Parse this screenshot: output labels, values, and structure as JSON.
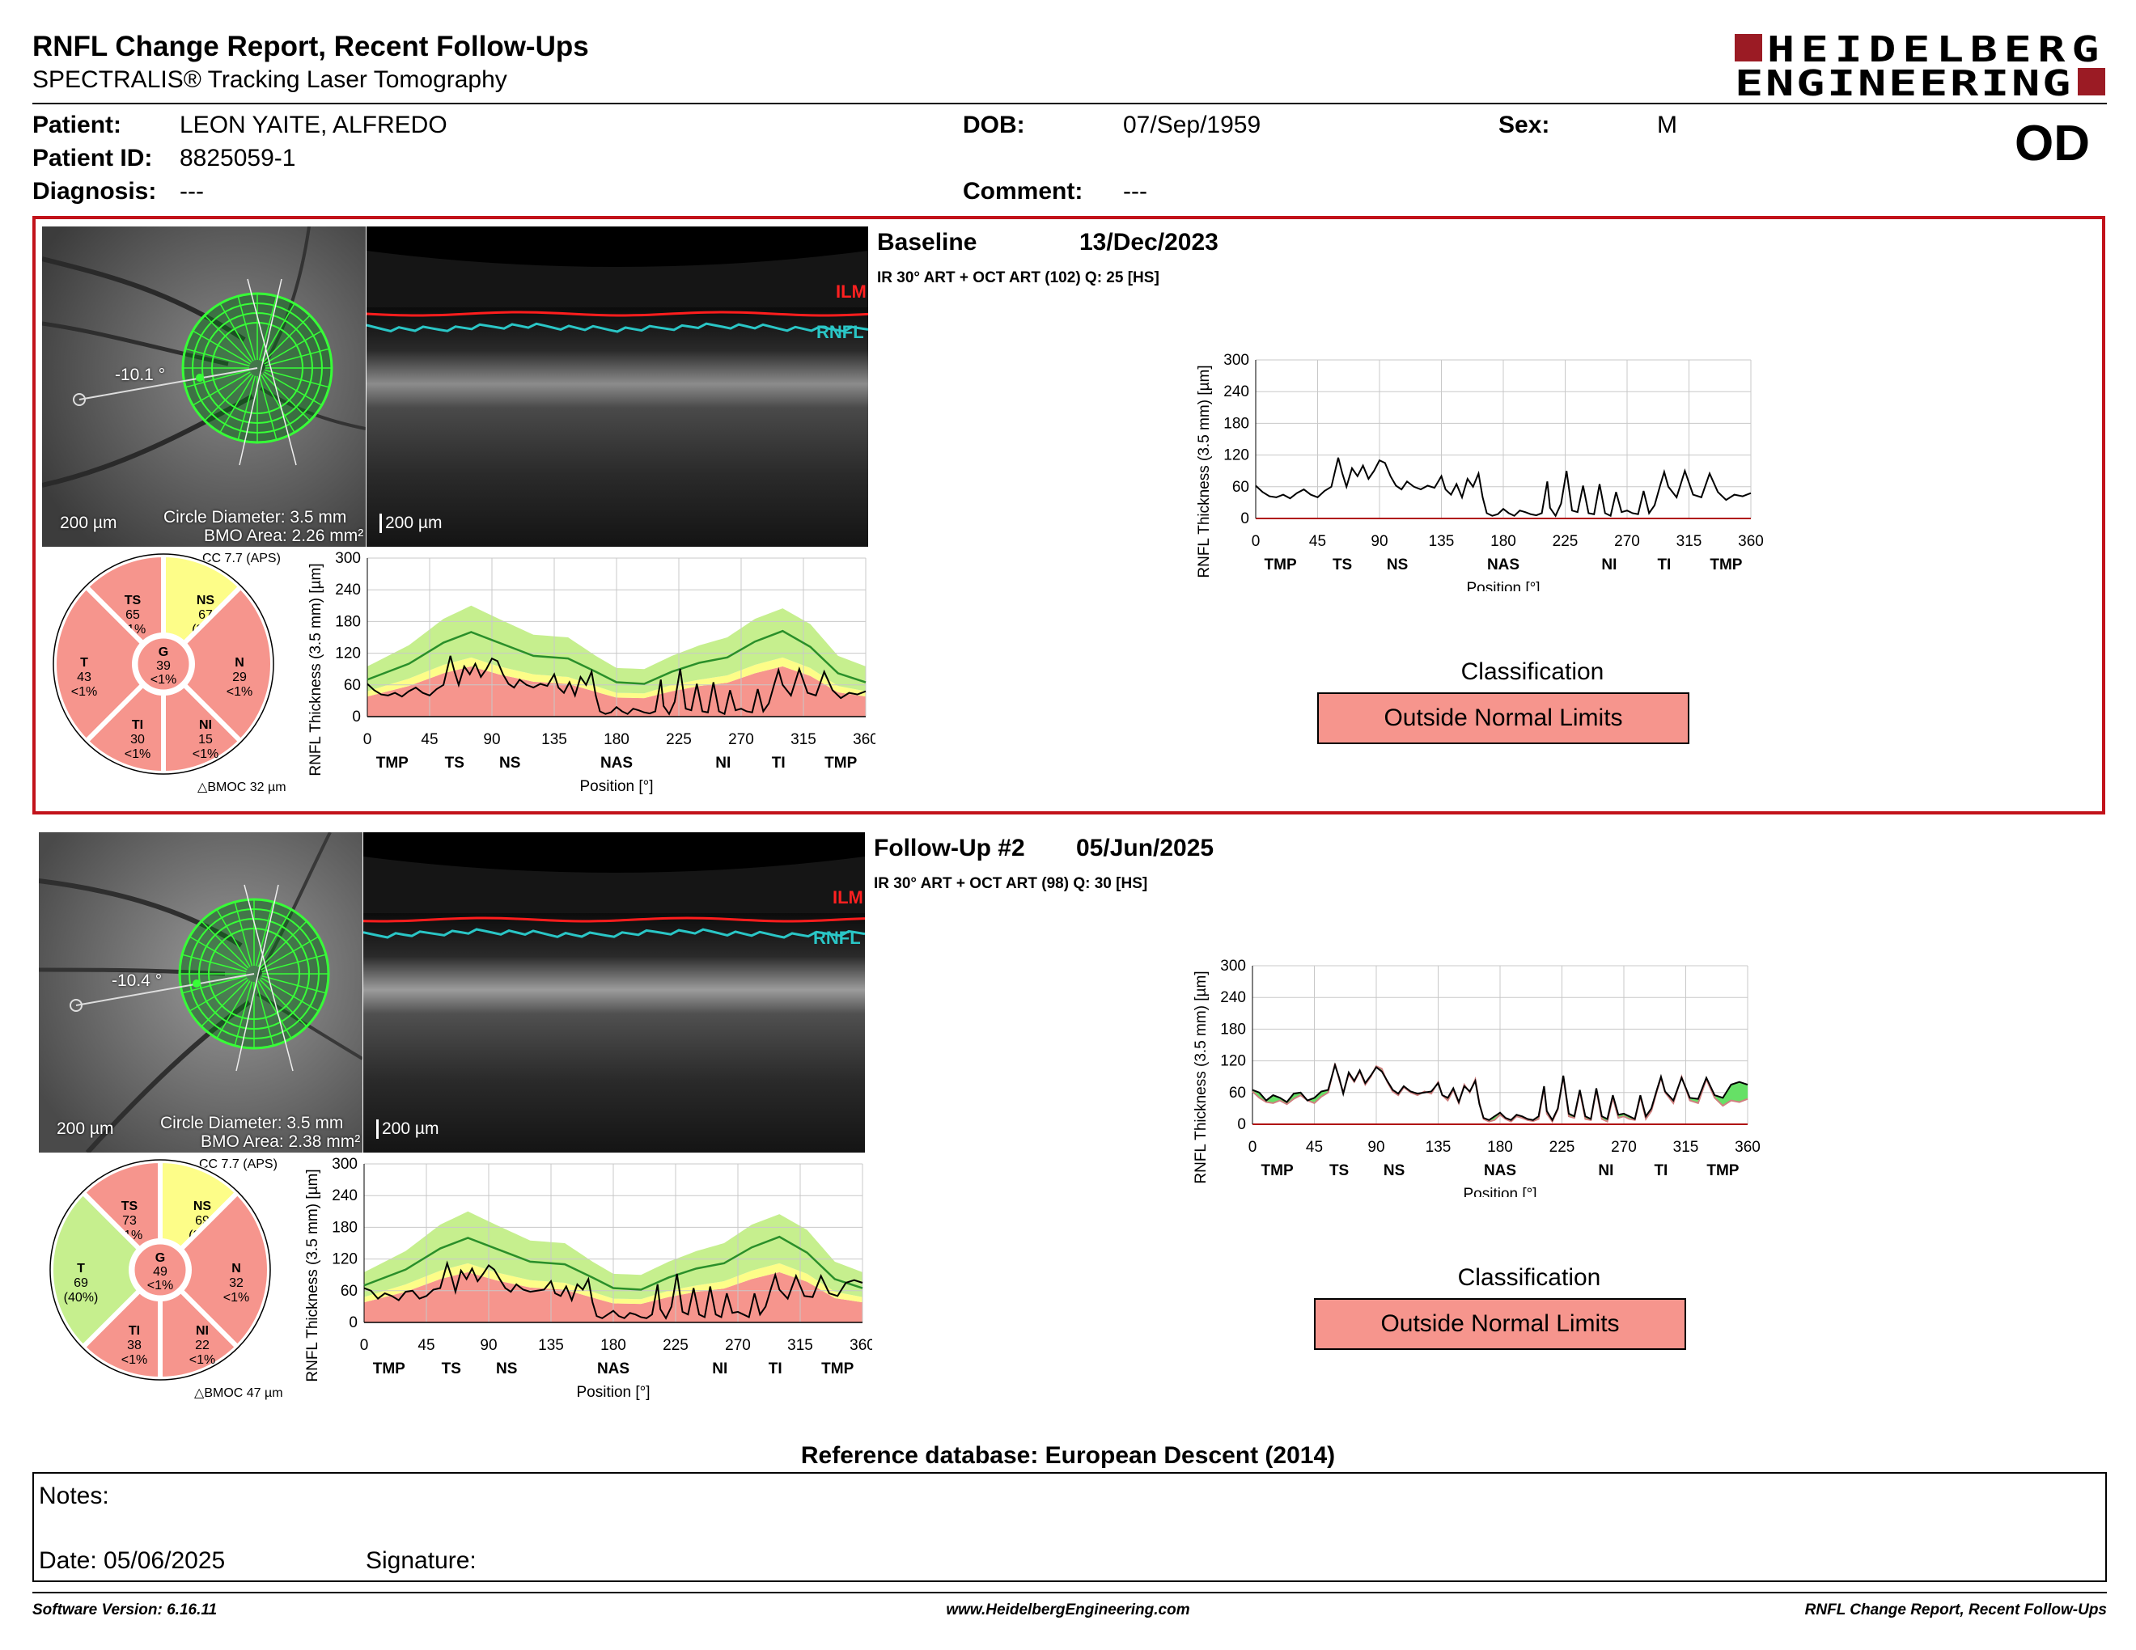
{
  "header": {
    "title": "RNFL Change Report, Recent Follow-Ups",
    "subtitle": "SPECTRALIS® Tracking Laser Tomography",
    "logo_line1": "HEIDELBERG",
    "logo_line2": "ENGINEERING",
    "eye": "OD"
  },
  "patient": {
    "patient_label": "Patient:",
    "patient_value": "LEON YAITE, ALFREDO",
    "id_label": "Patient ID:",
    "id_value": "8825059-1",
    "diagnosis_label": "Diagnosis:",
    "diagnosis_value": "---",
    "dob_label": "DOB:",
    "dob_value": "07/Sep/1959",
    "comment_label": "Comment:",
    "comment_value": "---",
    "sex_label": "Sex:",
    "sex_value": "M"
  },
  "colors": {
    "accent": "#c2121a",
    "outside": "#f6958d",
    "borderline": "#fdfd88",
    "within": "#c6ef8e",
    "ilm": "#ff0000",
    "rnfl": "#28c4c4"
  },
  "exams": [
    {
      "heading": "Baseline",
      "date": "13/Dec/2023",
      "acquisition": "IR 30° ART + OCT ART (102) Q: 25 [HS]",
      "angle": "-10.1 °",
      "scale_fundus": "200 µm",
      "scale_bscan": "200 µm",
      "circle_diameter": "Circle Diameter: 3.5 mm",
      "bmo_area": "BMO Area: 2.26 mm²",
      "ilm_label": "ILM",
      "rnfl_label": "RNFL",
      "cc": "CC 7.7 (APS)",
      "bmoc": "BMOC 32 µm",
      "sectors": {
        "TS": {
          "name": "TS",
          "value": "65",
          "pct": "<1%",
          "cls": "outside"
        },
        "NS": {
          "name": "NS",
          "value": "67",
          "pct": "(2%)",
          "cls": "borderline"
        },
        "N": {
          "name": "N",
          "value": "29",
          "pct": "<1%",
          "cls": "outside"
        },
        "NI": {
          "name": "NI",
          "value": "15",
          "pct": "<1%",
          "cls": "outside"
        },
        "TI": {
          "name": "TI",
          "value": "30",
          "pct": "<1%",
          "cls": "outside"
        },
        "T": {
          "name": "T",
          "value": "43",
          "pct": "<1%",
          "cls": "outside"
        },
        "G": {
          "name": "G",
          "value": "39",
          "pct": "<1%",
          "cls": "outside"
        }
      },
      "classification_label": "Classification",
      "classification": "Outside Normal Limits"
    },
    {
      "heading": "Follow-Up #2",
      "date": "05/Jun/2025",
      "acquisition": "IR 30° ART + OCT ART (98) Q: 30 [HS]",
      "angle": "-10.4 °",
      "scale_fundus": "200 µm",
      "scale_bscan": "200 µm",
      "circle_diameter": "Circle Diameter: 3.5 mm",
      "bmo_area": "BMO Area: 2.38 mm²",
      "ilm_label": "ILM",
      "rnfl_label": "RNFL",
      "cc": "CC 7.7 (APS)",
      "bmoc": "BMOC 47 µm",
      "sectors": {
        "TS": {
          "name": "TS",
          "value": "73",
          "pct": "<1%",
          "cls": "outside"
        },
        "NS": {
          "name": "NS",
          "value": "69",
          "pct": "(2%)",
          "cls": "borderline"
        },
        "N": {
          "name": "N",
          "value": "32",
          "pct": "<1%",
          "cls": "outside"
        },
        "NI": {
          "name": "NI",
          "value": "22",
          "pct": "<1%",
          "cls": "outside"
        },
        "TI": {
          "name": "TI",
          "value": "38",
          "pct": "<1%",
          "cls": "outside"
        },
        "T": {
          "name": "T",
          "value": "69",
          "pct": "(40%)",
          "cls": "within"
        },
        "G": {
          "name": "G",
          "value": "49",
          "pct": "<1%",
          "cls": "outside"
        }
      },
      "classification_label": "Classification",
      "classification": "Outside Normal Limits"
    }
  ],
  "chart_data": [
    {
      "type": "line",
      "ylabel": "RNFL Thickness (3.5 mm) [µm]",
      "xlabel": "Position [°]",
      "ylim": [
        0,
        300
      ],
      "xlim": [
        0,
        360
      ],
      "yticks": [
        0,
        60,
        120,
        180,
        240,
        300
      ],
      "xticks": [
        0,
        45,
        90,
        135,
        180,
        225,
        270,
        315,
        360
      ],
      "sector_labels": [
        {
          "label": "TMP",
          "x": 18
        },
        {
          "label": "TS",
          "x": 63
        },
        {
          "label": "NS",
          "x": 103
        },
        {
          "label": "NAS",
          "x": 180
        },
        {
          "label": "NI",
          "x": 257
        },
        {
          "label": "TI",
          "x": 297
        },
        {
          "label": "TMP",
          "x": 342
        }
      ],
      "normative_mean": [
        [
          0,
          70
        ],
        [
          30,
          100
        ],
        [
          55,
          140
        ],
        [
          75,
          160
        ],
        [
          95,
          140
        ],
        [
          120,
          115
        ],
        [
          145,
          110
        ],
        [
          165,
          85
        ],
        [
          180,
          65
        ],
        [
          200,
          62
        ],
        [
          220,
          85
        ],
        [
          240,
          102
        ],
        [
          260,
          112
        ],
        [
          280,
          142
        ],
        [
          300,
          162
        ],
        [
          320,
          132
        ],
        [
          340,
          82
        ],
        [
          360,
          65
        ]
      ],
      "normative_upper": [
        [
          0,
          95
        ],
        [
          30,
          135
        ],
        [
          55,
          185
        ],
        [
          75,
          210
        ],
        [
          95,
          185
        ],
        [
          120,
          155
        ],
        [
          145,
          150
        ],
        [
          165,
          115
        ],
        [
          180,
          92
        ],
        [
          200,
          90
        ],
        [
          220,
          115
        ],
        [
          240,
          135
        ],
        [
          260,
          150
        ],
        [
          280,
          185
        ],
        [
          300,
          205
        ],
        [
          320,
          175
        ],
        [
          340,
          115
        ],
        [
          360,
          95
        ]
      ],
      "normative_p5": [
        [
          0,
          48
        ],
        [
          30,
          72
        ],
        [
          55,
          98
        ],
        [
          75,
          112
        ],
        [
          95,
          95
        ],
        [
          120,
          80
        ],
        [
          145,
          75
        ],
        [
          165,
          58
        ],
        [
          180,
          45
        ],
        [
          200,
          44
        ],
        [
          220,
          60
        ],
        [
          240,
          70
        ],
        [
          260,
          78
        ],
        [
          280,
          98
        ],
        [
          300,
          112
        ],
        [
          320,
          92
        ],
        [
          340,
          58
        ],
        [
          360,
          48
        ]
      ],
      "normative_p1": [
        [
          0,
          38
        ],
        [
          30,
          58
        ],
        [
          55,
          82
        ],
        [
          75,
          95
        ],
        [
          95,
          80
        ],
        [
          120,
          66
        ],
        [
          145,
          62
        ],
        [
          165,
          47
        ],
        [
          180,
          36
        ],
        [
          200,
          35
        ],
        [
          220,
          48
        ],
        [
          240,
          58
        ],
        [
          260,
          64
        ],
        [
          280,
          82
        ],
        [
          300,
          95
        ],
        [
          320,
          77
        ],
        [
          340,
          46
        ],
        [
          360,
          38
        ]
      ],
      "series": [
        {
          "name": "Baseline",
          "values": [
            [
              0,
              62
            ],
            [
              5,
              50
            ],
            [
              10,
              42
            ],
            [
              15,
              40
            ],
            [
              20,
              45
            ],
            [
              25,
              38
            ],
            [
              30,
              48
            ],
            [
              35,
              55
            ],
            [
              40,
              45
            ],
            [
              45,
              40
            ],
            [
              50,
              52
            ],
            [
              55,
              60
            ],
            [
              60,
              115
            ],
            [
              63,
              85
            ],
            [
              66,
              60
            ],
            [
              70,
              95
            ],
            [
              74,
              80
            ],
            [
              78,
              100
            ],
            [
              82,
              75
            ],
            [
              86,
              90
            ],
            [
              90,
              110
            ],
            [
              94,
              105
            ],
            [
              98,
              80
            ],
            [
              102,
              62
            ],
            [
              106,
              55
            ],
            [
              110,
              70
            ],
            [
              115,
              60
            ],
            [
              120,
              55
            ],
            [
              125,
              62
            ],
            [
              130,
              58
            ],
            [
              135,
              80
            ],
            [
              138,
              55
            ],
            [
              142,
              45
            ],
            [
              146,
              65
            ],
            [
              150,
              40
            ],
            [
              154,
              75
            ],
            [
              158,
              60
            ],
            [
              162,
              85
            ],
            [
              165,
              40
            ],
            [
              168,
              10
            ],
            [
              172,
              5
            ],
            [
              176,
              8
            ],
            [
              180,
              18
            ],
            [
              184,
              10
            ],
            [
              188,
              5
            ],
            [
              192,
              15
            ],
            [
              196,
              12
            ],
            [
              200,
              8
            ],
            [
              204,
              6
            ],
            [
              208,
              10
            ],
            [
              212,
              70
            ],
            [
              214,
              20
            ],
            [
              218,
              5
            ],
            [
              222,
              28
            ],
            [
              226,
              90
            ],
            [
              230,
              15
            ],
            [
              234,
              12
            ],
            [
              238,
              62
            ],
            [
              242,
              10
            ],
            [
              246,
              8
            ],
            [
              250,
              65
            ],
            [
              254,
              10
            ],
            [
              258,
              5
            ],
            [
              262,
              50
            ],
            [
              266,
              12
            ],
            [
              270,
              15
            ],
            [
              274,
              10
            ],
            [
              278,
              8
            ],
            [
              282,
              52
            ],
            [
              286,
              10
            ],
            [
              290,
              25
            ],
            [
              294,
              62
            ],
            [
              297,
              88
            ],
            [
              300,
              60
            ],
            [
              306,
              40
            ],
            [
              312,
              90
            ],
            [
              318,
              45
            ],
            [
              324,
              40
            ],
            [
              330,
              85
            ],
            [
              336,
              50
            ],
            [
              342,
              35
            ],
            [
              348,
              45
            ],
            [
              354,
              42
            ],
            [
              360,
              48
            ]
          ]
        },
        {
          "name": "Follow-Up #2",
          "values": [
            [
              0,
              65
            ],
            [
              5,
              60
            ],
            [
              10,
              45
            ],
            [
              15,
              55
            ],
            [
              20,
              50
            ],
            [
              25,
              42
            ],
            [
              30,
              58
            ],
            [
              35,
              60
            ],
            [
              40,
              45
            ],
            [
              45,
              50
            ],
            [
              50,
              62
            ],
            [
              55,
              65
            ],
            [
              60,
              112
            ],
            [
              63,
              88
            ],
            [
              66,
              58
            ],
            [
              70,
              98
            ],
            [
              74,
              82
            ],
            [
              78,
              102
            ],
            [
              82,
              78
            ],
            [
              86,
              92
            ],
            [
              90,
              108
            ],
            [
              94,
              100
            ],
            [
              98,
              82
            ],
            [
              102,
              65
            ],
            [
              106,
              58
            ],
            [
              110,
              72
            ],
            [
              115,
              62
            ],
            [
              120,
              58
            ],
            [
              125,
              60
            ],
            [
              130,
              62
            ],
            [
              135,
              78
            ],
            [
              138,
              55
            ],
            [
              142,
              50
            ],
            [
              146,
              68
            ],
            [
              150,
              42
            ],
            [
              154,
              72
            ],
            [
              158,
              62
            ],
            [
              162,
              82
            ],
            [
              165,
              38
            ],
            [
              168,
              12
            ],
            [
              172,
              8
            ],
            [
              176,
              15
            ],
            [
              180,
              22
            ],
            [
              184,
              12
            ],
            [
              188,
              8
            ],
            [
              192,
              18
            ],
            [
              196,
              15
            ],
            [
              200,
              10
            ],
            [
              204,
              8
            ],
            [
              208,
              15
            ],
            [
              212,
              72
            ],
            [
              214,
              25
            ],
            [
              218,
              8
            ],
            [
              222,
              30
            ],
            [
              226,
              92
            ],
            [
              230,
              20
            ],
            [
              234,
              15
            ],
            [
              238,
              65
            ],
            [
              242,
              15
            ],
            [
              246,
              10
            ],
            [
              250,
              68
            ],
            [
              254,
              15
            ],
            [
              258,
              10
            ],
            [
              262,
              55
            ],
            [
              266,
              18
            ],
            [
              270,
              20
            ],
            [
              274,
              15
            ],
            [
              278,
              10
            ],
            [
              282,
              55
            ],
            [
              286,
              15
            ],
            [
              290,
              30
            ],
            [
              294,
              65
            ],
            [
              297,
              90
            ],
            [
              300,
              62
            ],
            [
              306,
              45
            ],
            [
              312,
              88
            ],
            [
              318,
              50
            ],
            [
              324,
              48
            ],
            [
              330,
              88
            ],
            [
              336,
              55
            ],
            [
              342,
              50
            ],
            [
              348,
              75
            ],
            [
              354,
              80
            ],
            [
              360,
              75
            ]
          ]
        }
      ]
    }
  ],
  "reference_db": "Reference database: European Descent (2014)",
  "notes": {
    "notes_label": "Notes:",
    "date_label": "Date: 05/06/2025",
    "signature_label": "Signature:"
  },
  "footer": {
    "software": "Software Version: 6.16.11",
    "website": "www.HeidelbergEngineering.com",
    "report": "RNFL Change Report, Recent Follow-Ups"
  }
}
